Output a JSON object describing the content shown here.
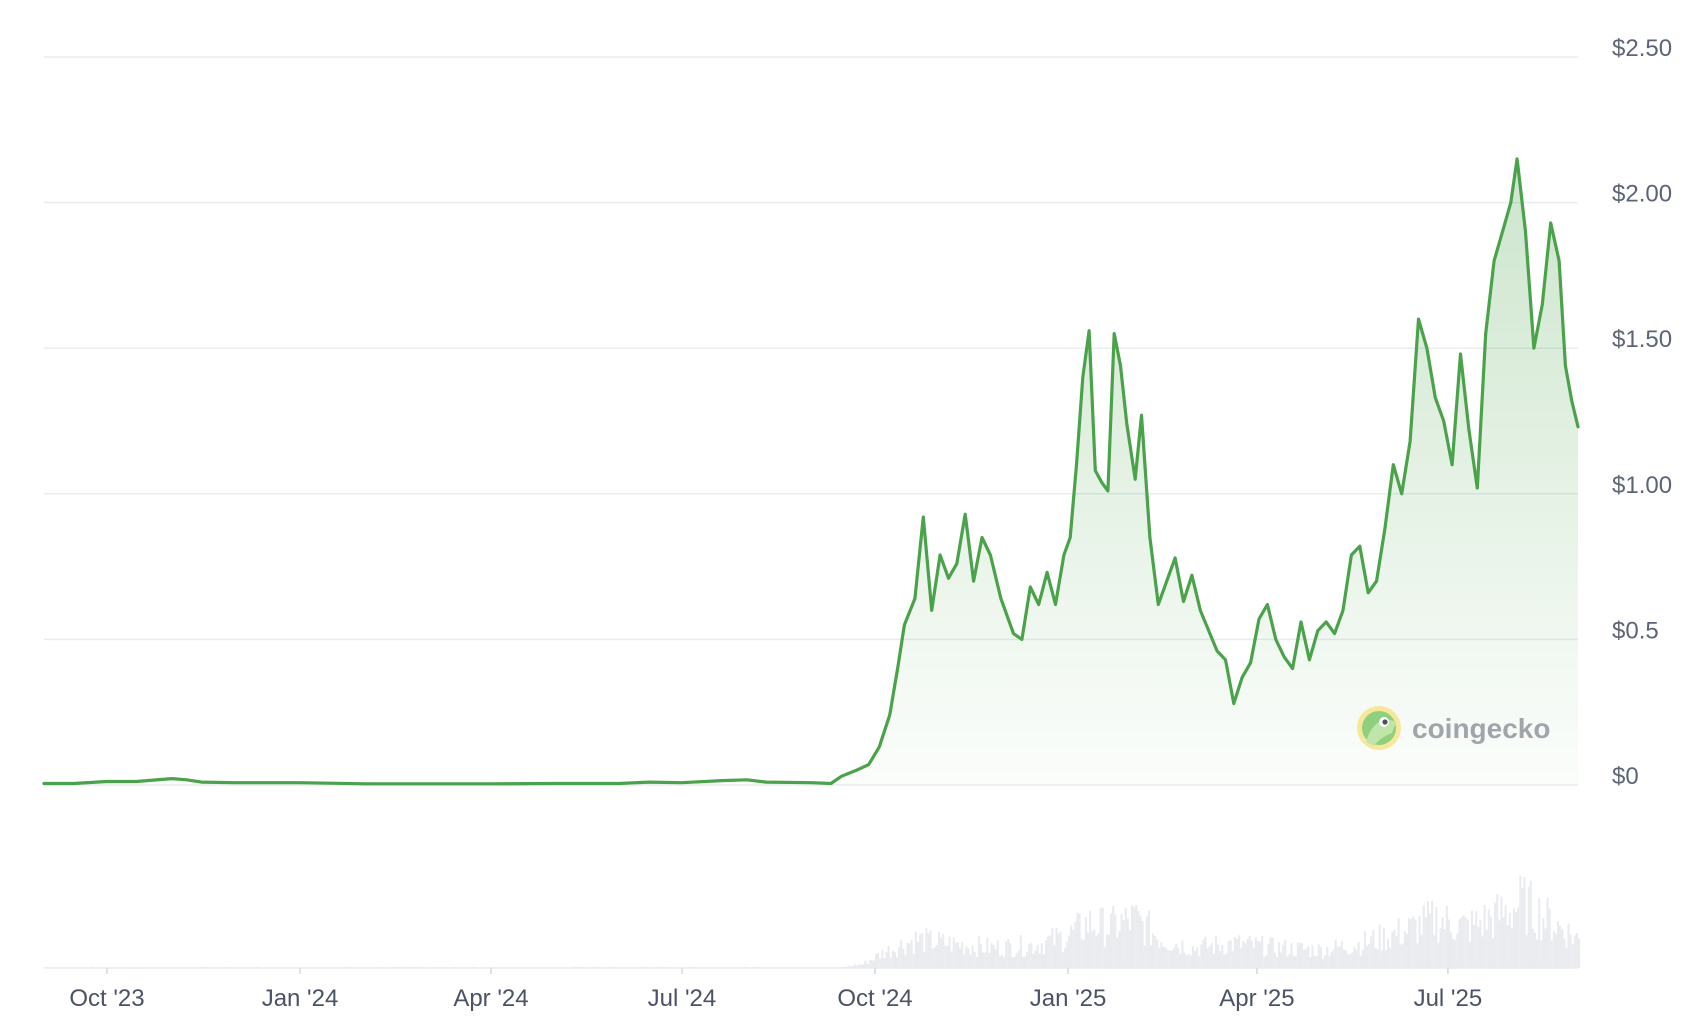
{
  "watermark": {
    "text": "coingecko"
  },
  "colors": {
    "line": "#4aa24a",
    "fill_top": "#cfe9cf",
    "volume": "#e9ebef",
    "grid": "#e9ecf0"
  },
  "chart_data": {
    "type": "area",
    "x_axis": {
      "type": "date",
      "range": [
        "2023-09-01",
        "2025-09-01"
      ],
      "tick_labels": [
        "Oct '23",
        "Jan '24",
        "Apr '24",
        "Jul '24",
        "Oct '24",
        "Jan '25",
        "Apr '25",
        "Jul '25"
      ],
      "tick_dates": [
        "2023-10-01",
        "2024-01-01",
        "2024-04-01",
        "2024-07-01",
        "2024-10-01",
        "2025-01-01",
        "2025-04-01",
        "2025-07-01"
      ]
    },
    "y_axis": {
      "position": "right",
      "ylim": [
        0,
        2.5
      ],
      "tick_values": [
        0,
        0.5,
        1.0,
        1.5,
        2.0,
        2.5
      ],
      "tick_labels": [
        "$0",
        "$0.5",
        "$1.00",
        "$1.50",
        "$2.00",
        "$2.50"
      ]
    },
    "grid": true,
    "series": [
      {
        "values_xy": [
          [
            "2023-09-01",
            0.005
          ],
          [
            "2023-09-15",
            0.005
          ],
          [
            "2023-10-01",
            0.012
          ],
          [
            "2023-10-15",
            0.012
          ],
          [
            "2023-11-01",
            0.022
          ],
          [
            "2023-11-08",
            0.018
          ],
          [
            "2023-11-15",
            0.01
          ],
          [
            "2023-12-01",
            0.008
          ],
          [
            "2024-01-01",
            0.008
          ],
          [
            "2024-02-01",
            0.004
          ],
          [
            "2024-03-01",
            0.004
          ],
          [
            "2024-04-01",
            0.004
          ],
          [
            "2024-05-01",
            0.005
          ],
          [
            "2024-06-01",
            0.005
          ],
          [
            "2024-06-15",
            0.01
          ],
          [
            "2024-07-01",
            0.008
          ],
          [
            "2024-07-20",
            0.015
          ],
          [
            "2024-08-01",
            0.018
          ],
          [
            "2024-08-10",
            0.01
          ],
          [
            "2024-09-01",
            0.008
          ],
          [
            "2024-09-10",
            0.005
          ],
          [
            "2024-09-15",
            0.03
          ],
          [
            "2024-09-22",
            0.05
          ],
          [
            "2024-09-28",
            0.07
          ],
          [
            "2024-10-03",
            0.13
          ],
          [
            "2024-10-08",
            0.24
          ],
          [
            "2024-10-12",
            0.41
          ],
          [
            "2024-10-15",
            0.55
          ],
          [
            "2024-10-20",
            0.64
          ],
          [
            "2024-10-24",
            0.92
          ],
          [
            "2024-10-28",
            0.6
          ],
          [
            "2024-11-01",
            0.79
          ],
          [
            "2024-11-05",
            0.71
          ],
          [
            "2024-11-09",
            0.76
          ],
          [
            "2024-11-13",
            0.93
          ],
          [
            "2024-11-17",
            0.7
          ],
          [
            "2024-11-21",
            0.85
          ],
          [
            "2024-11-25",
            0.79
          ],
          [
            "2024-11-30",
            0.64
          ],
          [
            "2024-12-03",
            0.58
          ],
          [
            "2024-12-06",
            0.52
          ],
          [
            "2024-12-10",
            0.5
          ],
          [
            "2024-12-14",
            0.68
          ],
          [
            "2024-12-18",
            0.62
          ],
          [
            "2024-12-22",
            0.73
          ],
          [
            "2024-12-26",
            0.62
          ],
          [
            "2024-12-30",
            0.79
          ],
          [
            "2025-01-02",
            0.85
          ],
          [
            "2025-01-05",
            1.1
          ],
          [
            "2025-01-08",
            1.4
          ],
          [
            "2025-01-11",
            1.56
          ],
          [
            "2025-01-14",
            1.08
          ],
          [
            "2025-01-17",
            1.04
          ],
          [
            "2025-01-20",
            1.01
          ],
          [
            "2025-01-23",
            1.55
          ],
          [
            "2025-01-26",
            1.44
          ],
          [
            "2025-01-29",
            1.24
          ],
          [
            "2025-02-02",
            1.05
          ],
          [
            "2025-02-05",
            1.27
          ],
          [
            "2025-02-09",
            0.85
          ],
          [
            "2025-02-13",
            0.62
          ],
          [
            "2025-02-17",
            0.7
          ],
          [
            "2025-02-21",
            0.78
          ],
          [
            "2025-02-25",
            0.63
          ],
          [
            "2025-03-01",
            0.72
          ],
          [
            "2025-03-05",
            0.6
          ],
          [
            "2025-03-09",
            0.53
          ],
          [
            "2025-03-13",
            0.46
          ],
          [
            "2025-03-17",
            0.43
          ],
          [
            "2025-03-21",
            0.28
          ],
          [
            "2025-03-25",
            0.37
          ],
          [
            "2025-03-29",
            0.42
          ],
          [
            "2025-04-02",
            0.57
          ],
          [
            "2025-04-06",
            0.62
          ],
          [
            "2025-04-10",
            0.5
          ],
          [
            "2025-04-14",
            0.44
          ],
          [
            "2025-04-18",
            0.4
          ],
          [
            "2025-04-22",
            0.56
          ],
          [
            "2025-04-26",
            0.43
          ],
          [
            "2025-04-30",
            0.53
          ],
          [
            "2025-05-04",
            0.56
          ],
          [
            "2025-05-08",
            0.52
          ],
          [
            "2025-05-12",
            0.6
          ],
          [
            "2025-05-16",
            0.79
          ],
          [
            "2025-05-20",
            0.82
          ],
          [
            "2025-05-24",
            0.66
          ],
          [
            "2025-05-28",
            0.7
          ],
          [
            "2025-06-01",
            0.88
          ],
          [
            "2025-06-05",
            1.1
          ],
          [
            "2025-06-09",
            1.0
          ],
          [
            "2025-06-13",
            1.18
          ],
          [
            "2025-06-17",
            1.6
          ],
          [
            "2025-06-21",
            1.5
          ],
          [
            "2025-06-25",
            1.33
          ],
          [
            "2025-06-29",
            1.25
          ],
          [
            "2025-07-03",
            1.1
          ],
          [
            "2025-07-07",
            1.48
          ],
          [
            "2025-07-11",
            1.22
          ],
          [
            "2025-07-15",
            1.02
          ],
          [
            "2025-07-19",
            1.55
          ],
          [
            "2025-07-23",
            1.8
          ],
          [
            "2025-07-27",
            1.9
          ],
          [
            "2025-07-31",
            2.0
          ],
          [
            "2025-08-03",
            2.15
          ],
          [
            "2025-08-07",
            1.9
          ],
          [
            "2025-08-11",
            1.5
          ],
          [
            "2025-08-15",
            1.65
          ],
          [
            "2025-08-19",
            1.93
          ],
          [
            "2025-08-23",
            1.8
          ],
          [
            "2025-08-26",
            1.44
          ],
          [
            "2025-08-29",
            1.32
          ],
          [
            "2025-09-01",
            1.23
          ]
        ]
      }
    ],
    "volume": {
      "note_bins": "relative daily volume shown as light gray bars beneath the price line",
      "ymax": 1.0,
      "values_xy": [
        [
          "2023-09-01",
          0.01
        ],
        [
          "2024-09-15",
          0.01
        ],
        [
          "2024-09-25",
          0.05
        ],
        [
          "2024-10-05",
          0.2
        ],
        [
          "2024-10-20",
          0.35
        ],
        [
          "2024-11-05",
          0.3
        ],
        [
          "2024-11-25",
          0.25
        ],
        [
          "2024-12-15",
          0.28
        ],
        [
          "2025-01-01",
          0.4
        ],
        [
          "2025-01-10",
          0.55
        ],
        [
          "2025-01-20",
          0.5
        ],
        [
          "2025-02-01",
          0.6
        ],
        [
          "2025-02-15",
          0.35
        ],
        [
          "2025-03-01",
          0.25
        ],
        [
          "2025-03-20",
          0.3
        ],
        [
          "2025-04-10",
          0.25
        ],
        [
          "2025-05-01",
          0.22
        ],
        [
          "2025-05-20",
          0.3
        ],
        [
          "2025-06-10",
          0.45
        ],
        [
          "2025-06-25",
          0.6
        ],
        [
          "2025-07-10",
          0.5
        ],
        [
          "2025-07-25",
          0.65
        ],
        [
          "2025-08-05",
          0.8
        ],
        [
          "2025-08-20",
          0.55
        ],
        [
          "2025-09-01",
          0.35
        ]
      ]
    }
  }
}
